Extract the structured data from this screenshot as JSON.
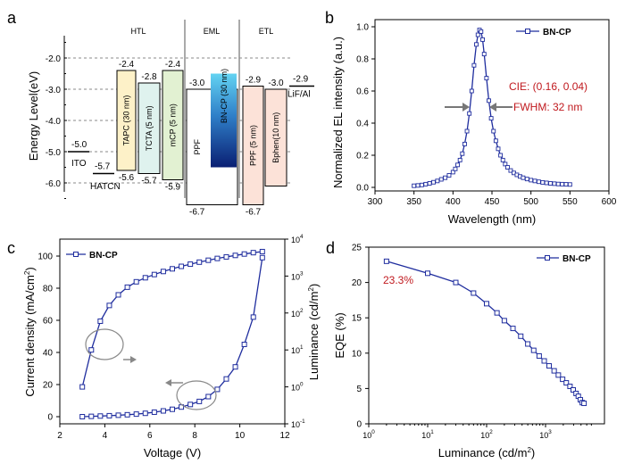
{
  "panels": {
    "a": {
      "label": "a",
      "ylabel": "Energy Level(eV)",
      "ylim": [
        -6.75,
        -1.45
      ],
      "yticks": [
        -2.0,
        -3.0,
        -4.0,
        -5.0,
        -6.0
      ],
      "ytick_labels": [
        "-2.0",
        "-3.0",
        "-4.0",
        "-5.0",
        "-6.0"
      ],
      "region_labels": [
        "HTL",
        "EML",
        "ETL"
      ],
      "layers": [
        {
          "name": "ITO",
          "homo": -5.0,
          "lumo": null,
          "homo_label": "-5.0",
          "lumo_label": "",
          "fill": "#ffffff"
        },
        {
          "name": "HATCN",
          "homo": -5.7,
          "lumo": null,
          "homo_label": "-5.7",
          "lumo_label": "",
          "fill": "#ffffff"
        },
        {
          "name": "TAPC (30 nm)",
          "homo": -5.6,
          "lumo": -2.4,
          "homo_label": "-5.6",
          "lumo_label": "-2.4",
          "fill": "#fdf1c8"
        },
        {
          "name": "TCTA (5 nm)",
          "homo": -5.7,
          "lumo": -2.8,
          "homo_label": "-5.7",
          "lumo_label": "-2.8",
          "fill": "#dff2ee"
        },
        {
          "name": "mCP (5 nm)",
          "homo": -5.9,
          "lumo": -2.4,
          "homo_label": "-5.9",
          "lumo_label": "-2.4",
          "fill": "#e2f1d2"
        },
        {
          "name": "PPF",
          "homo": -6.7,
          "lumo": -3.0,
          "homo_label": "-6.7",
          "lumo_label": "-3.0",
          "fill": "#ffffff"
        },
        {
          "name": "BN-CP (30 nm)",
          "homo": -5.5,
          "lumo": -2.5,
          "homo_label": "",
          "lumo_label": "",
          "fill": "gradient"
        },
        {
          "name": "PPF (5 nm)",
          "homo": -6.7,
          "lumo": -2.9,
          "homo_label": "-6.7",
          "lumo_label": "-2.9",
          "fill": "#fce2d8"
        },
        {
          "name": "Bphen(10 nm)",
          "homo": -6.1,
          "lumo": -3.0,
          "homo_label": "",
          "lumo_label": "-3.0",
          "fill": "#fce2d8"
        },
        {
          "name": "LiF/Al",
          "homo": null,
          "lumo": -2.9,
          "homo_label": "",
          "lumo_label": "-2.9",
          "fill": "#ffffff"
        }
      ]
    },
    "b": {
      "label": "b",
      "legend": "BN-CP",
      "xlabel": "Wavelength (nm)",
      "ylabel": "Normalized EL intensity (a.u.)",
      "annotation_cie": "CIE: (0.16, 0.04)",
      "annotation_fwhm": "FWHM: 32 nm",
      "xticks": [
        "300",
        "350",
        "400",
        "450",
        "500",
        "550",
        "600"
      ],
      "yticks": [
        "0.0",
        "0.2",
        "0.4",
        "0.6",
        "0.8",
        "1.0"
      ]
    },
    "c": {
      "label": "c",
      "legend": "BN-CP",
      "xlabel": "Voltage (V)",
      "ylabel_left": "Current density (mA/cm",
      "ylabel_left_sup": "2",
      "ylabel_left_tail": ")",
      "ylabel_right": "Luminance (cd/m",
      "ylabel_right_sup": "2",
      "ylabel_right_tail": ")",
      "xticks": [
        "2",
        "4",
        "6",
        "8",
        "10",
        "12"
      ],
      "yticks_left": [
        "0",
        "20",
        "40",
        "60",
        "80",
        "100"
      ],
      "yticks_right": [
        {
          "base": "10",
          "exp": "4"
        },
        {
          "base": "10",
          "exp": "3"
        },
        {
          "base": "10",
          "exp": "2"
        },
        {
          "base": "10",
          "exp": "1"
        },
        {
          "base": "10",
          "exp": "0"
        },
        {
          "base": "10",
          "exp": "-1"
        }
      ]
    },
    "d": {
      "label": "d",
      "legend": "BN-CP",
      "xlabel": "Luminance (cd/m",
      "xlabel_sup": "2",
      "xlabel_tail": ")",
      "ylabel": "EQE (%)",
      "annotation_max": "23.3%",
      "xticks": [
        {
          "base": "10",
          "exp": "0"
        },
        {
          "base": "10",
          "exp": "1"
        },
        {
          "base": "10",
          "exp": "2"
        },
        {
          "base": "10",
          "exp": "3"
        }
      ],
      "yticks": [
        "0",
        "5",
        "10",
        "15",
        "20",
        "25"
      ]
    }
  },
  "chart_data": [
    {
      "panel": "b",
      "type": "line",
      "title": "",
      "xlabel": "Wavelength (nm)",
      "ylabel": "Normalized EL intensity (a.u.)",
      "xlim": [
        300,
        600
      ],
      "ylim": [
        0,
        1.05
      ],
      "series": [
        {
          "name": "BN-CP",
          "x": [
            350,
            355,
            360,
            365,
            370,
            375,
            380,
            385,
            390,
            395,
            400,
            403,
            406,
            409,
            412,
            415,
            418,
            421,
            424,
            427,
            430,
            432,
            434,
            436,
            438,
            440,
            443,
            446,
            449,
            452,
            455,
            458,
            461,
            464,
            467,
            470,
            474,
            478,
            482,
            486,
            490,
            495,
            500,
            505,
            510,
            515,
            520,
            525,
            530,
            535,
            540,
            545,
            550
          ],
          "y": [
            0.01,
            0.012,
            0.015,
            0.02,
            0.025,
            0.032,
            0.04,
            0.05,
            0.06,
            0.075,
            0.095,
            0.115,
            0.14,
            0.17,
            0.21,
            0.27,
            0.35,
            0.46,
            0.6,
            0.76,
            0.89,
            0.95,
            0.98,
            0.97,
            0.92,
            0.83,
            0.68,
            0.54,
            0.43,
            0.35,
            0.29,
            0.24,
            0.2,
            0.17,
            0.145,
            0.125,
            0.105,
            0.09,
            0.078,
            0.068,
            0.06,
            0.052,
            0.045,
            0.04,
            0.035,
            0.031,
            0.028,
            0.025,
            0.023,
            0.021,
            0.02,
            0.019,
            0.018
          ]
        }
      ]
    },
    {
      "panel": "c",
      "type": "line",
      "xlabel": "Voltage (V)",
      "ylabel": "Current density (mA/cm2)",
      "y2label": "Luminance (cd/m2)",
      "xlim": [
        2,
        12
      ],
      "ylim": [
        -5,
        105
      ],
      "y2lim_log10": [
        -1,
        4
      ],
      "series": [
        {
          "name": "Current density",
          "axis": "left",
          "x": [
            3.0,
            3.4,
            3.8,
            4.2,
            4.6,
            5.0,
            5.4,
            5.8,
            6.2,
            6.6,
            7.0,
            7.4,
            7.8,
            8.2,
            8.6,
            9.0,
            9.4,
            9.8,
            10.2,
            10.6,
            11.0
          ],
          "y": [
            0.0,
            0.2,
            0.4,
            0.6,
            0.9,
            1.2,
            1.6,
            2.1,
            2.8,
            3.6,
            4.6,
            6.0,
            7.6,
            9.5,
            12.5,
            17.0,
            23.5,
            31.0,
            45.0,
            62.0,
            99.0
          ]
        },
        {
          "name": "Luminance",
          "axis": "right",
          "x": [
            3.0,
            3.4,
            3.8,
            4.2,
            4.6,
            5.0,
            5.4,
            5.8,
            6.2,
            6.6,
            7.0,
            7.4,
            7.8,
            8.2,
            8.6,
            9.0,
            9.4,
            9.8,
            10.2,
            10.6,
            11.0
          ],
          "y": [
            1,
            10,
            60,
            160,
            310,
            500,
            700,
            900,
            1100,
            1330,
            1570,
            1830,
            2100,
            2380,
            2680,
            3000,
            3300,
            3620,
            3950,
            4300,
            4600
          ]
        }
      ]
    },
    {
      "panel": "d",
      "type": "line",
      "xscale": "log",
      "xlabel": "Luminance (cd/m2)",
      "ylabel": "EQE (%)",
      "xlim_log10": [
        0,
        3.8
      ],
      "ylim": [
        0,
        25
      ],
      "series": [
        {
          "name": "BN-CP",
          "x": [
            2,
            10,
            30,
            60,
            100,
            150,
            200,
            280,
            380,
            500,
            630,
            780,
            950,
            1150,
            1400,
            1650,
            1950,
            2250,
            2600,
            2950,
            3300,
            3600,
            3900,
            4200,
            4500
          ],
          "y": [
            23.0,
            21.3,
            20.0,
            18.5,
            17.0,
            15.7,
            14.6,
            13.5,
            12.4,
            11.3,
            10.4,
            9.6,
            8.9,
            8.2,
            7.5,
            6.9,
            6.3,
            5.8,
            5.3,
            4.8,
            4.3,
            3.9,
            3.4,
            3.0,
            2.9
          ]
        }
      ]
    }
  ]
}
